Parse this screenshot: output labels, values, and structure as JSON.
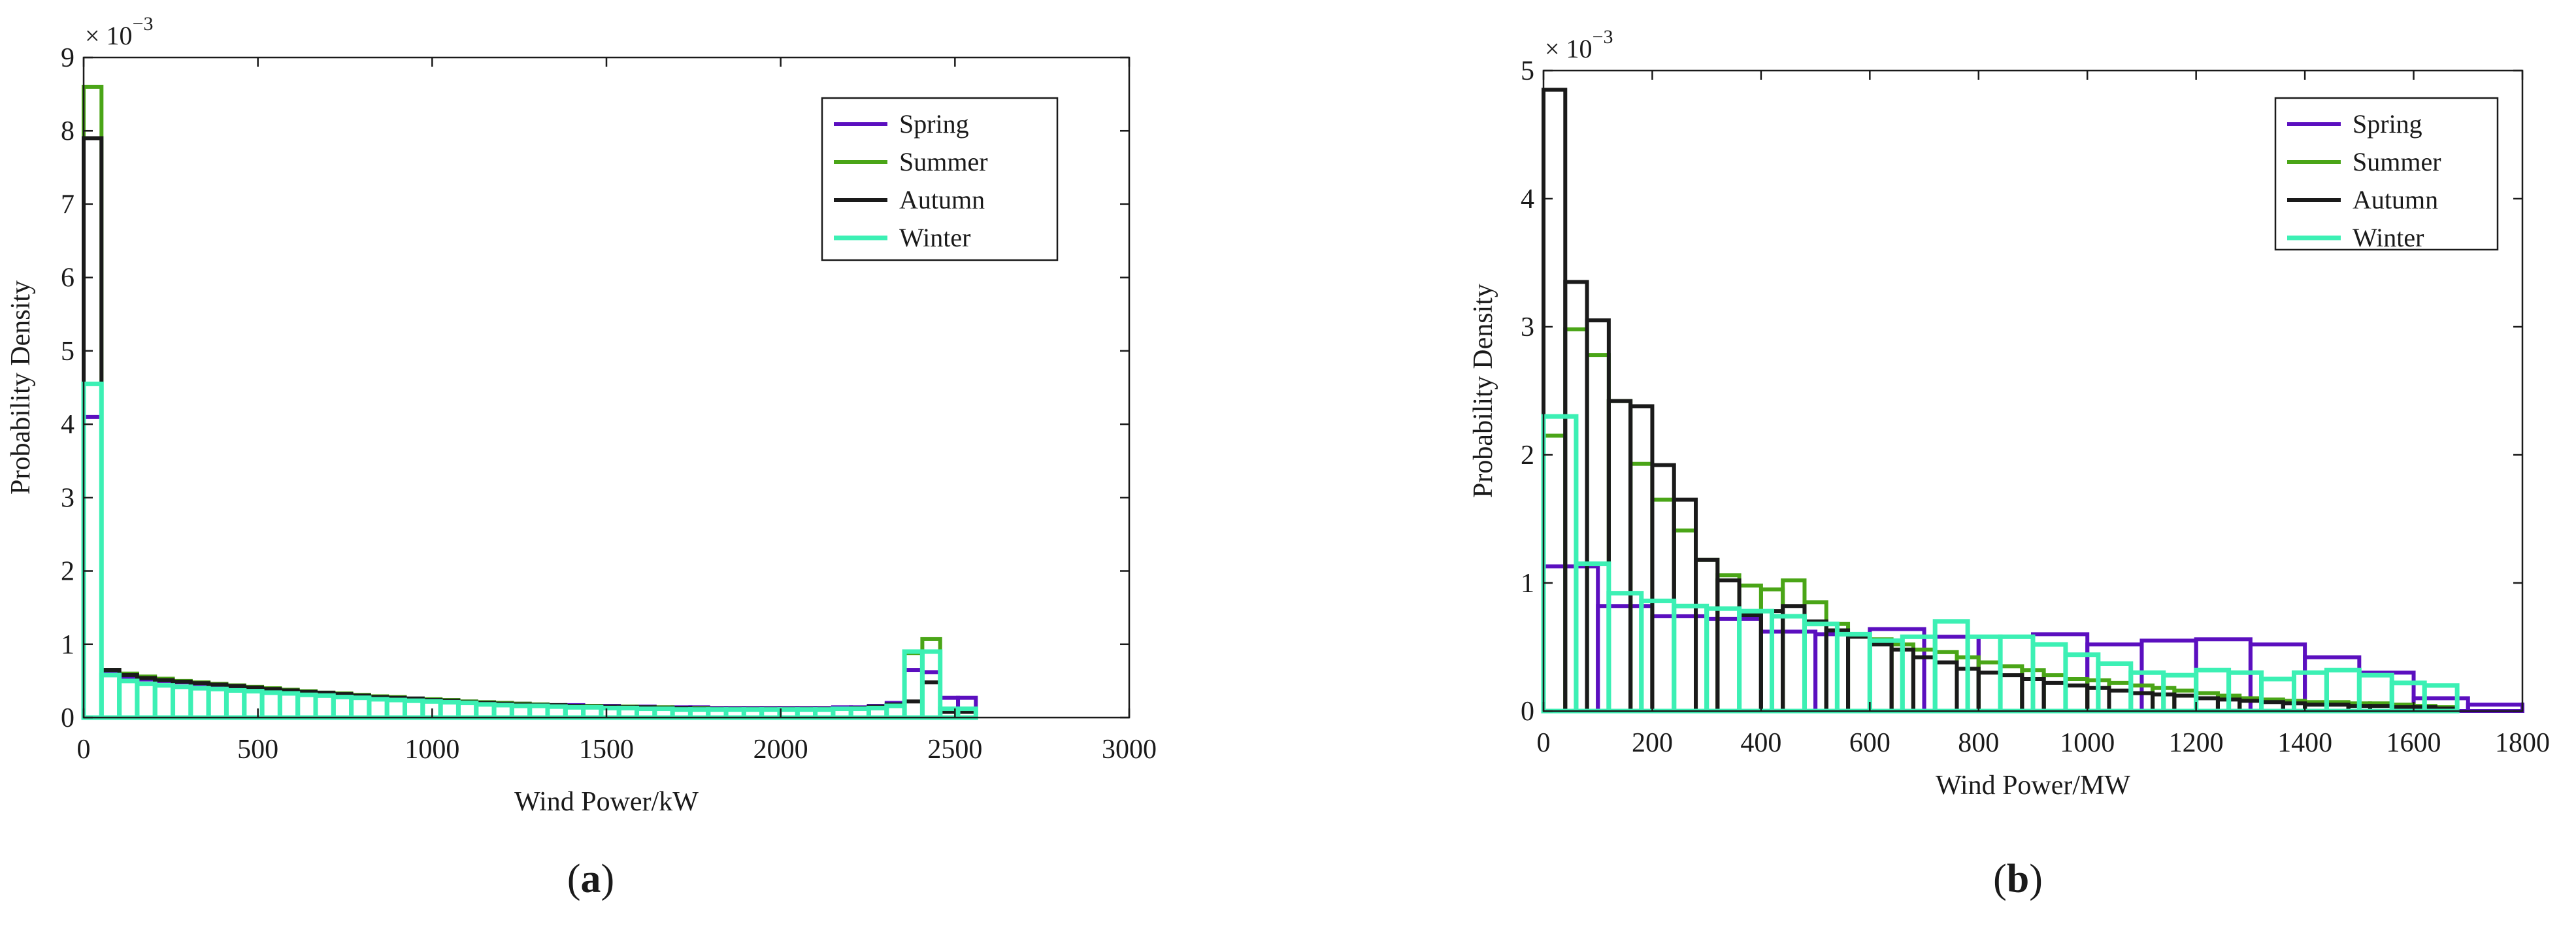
{
  "panels": [
    {
      "id": "a",
      "label_open": "(",
      "label_letter": "a",
      "label_close": ")",
      "chart_data": {
        "type": "histogram",
        "title": "",
        "xlabel": "Wind Power/kW",
        "ylabel": "Probability Density",
        "y_exponent_prefix": "× 10",
        "y_exponent_power": "−3",
        "xlim": [
          0,
          3000
        ],
        "ylim": [
          0,
          9
        ],
        "x_ticks": [
          "0",
          "500",
          "1000",
          "1500",
          "2000",
          "2500",
          "3000"
        ],
        "y_ticks": [
          "0",
          "1",
          "2",
          "3",
          "4",
          "5",
          "6",
          "7",
          "8",
          "9"
        ],
        "legend_position": "top-right",
        "bin_edges": [
          0,
          51.2,
          102.4,
          153.6,
          204.8,
          256,
          307.2,
          358.4,
          409.6,
          460.8,
          512,
          563.2,
          614.4,
          665.6,
          716.8,
          768,
          819.2,
          870.4,
          921.6,
          972.8,
          1024,
          1075.2,
          1126.4,
          1177.6,
          1228.8,
          1280,
          1331.2,
          1382.4,
          1433.6,
          1484.8,
          1536,
          1587.2,
          1638.4,
          1689.6,
          1740.8,
          1792,
          1843.2,
          1894.4,
          1945.6,
          1996.8,
          2048,
          2099.2,
          2150.4,
          2201.6,
          2252.8,
          2304,
          2355.2,
          2406.4,
          2457.6,
          2508.8,
          2560
        ],
        "series": [
          {
            "name": "Spring",
            "color": "#5b0fbf",
            "line_width": 6,
            "values": [
              4.1,
              0.62,
              0.55,
              0.52,
              0.5,
              0.48,
              0.46,
              0.44,
              0.42,
              0.4,
              0.38,
              0.36,
              0.34,
              0.33,
              0.32,
              0.3,
              0.28,
              0.27,
              0.26,
              0.25,
              0.24,
              0.22,
              0.21,
              0.2,
              0.19,
              0.18,
              0.17,
              0.17,
              0.16,
              0.16,
              0.15,
              0.15,
              0.14,
              0.14,
              0.14,
              0.13,
              0.13,
              0.13,
              0.13,
              0.13,
              0.13,
              0.13,
              0.14,
              0.14,
              0.16,
              0.2,
              0.65,
              0.62,
              0.27,
              0.27
            ]
          },
          {
            "name": "Summer",
            "color": "#4aa517",
            "line_width": 6,
            "values": [
              8.6,
              0.65,
              0.6,
              0.56,
              0.53,
              0.5,
              0.48,
              0.46,
              0.44,
              0.42,
              0.4,
              0.38,
              0.36,
              0.34,
              0.33,
              0.31,
              0.29,
              0.28,
              0.26,
              0.25,
              0.24,
              0.22,
              0.21,
              0.2,
              0.19,
              0.18,
              0.17,
              0.16,
              0.16,
              0.15,
              0.15,
              0.14,
              0.14,
              0.13,
              0.13,
              0.12,
              0.12,
              0.12,
              0.12,
              0.12,
              0.12,
              0.12,
              0.12,
              0.13,
              0.14,
              0.17,
              0.88,
              1.07,
              0.1,
              0.1
            ]
          },
          {
            "name": "Autumn",
            "color": "#1a1a1a",
            "line_width": 6,
            "values": [
              7.9,
              0.65,
              0.58,
              0.54,
              0.51,
              0.49,
              0.47,
              0.45,
              0.43,
              0.41,
              0.39,
              0.37,
              0.35,
              0.34,
              0.32,
              0.3,
              0.28,
              0.27,
              0.26,
              0.24,
              0.23,
              0.21,
              0.2,
              0.19,
              0.18,
              0.17,
              0.17,
              0.16,
              0.15,
              0.15,
              0.14,
              0.14,
              0.13,
              0.13,
              0.12,
              0.12,
              0.12,
              0.12,
              0.12,
              0.12,
              0.12,
              0.12,
              0.12,
              0.13,
              0.15,
              0.18,
              0.22,
              0.48,
              0.08,
              0.08
            ]
          },
          {
            "name": "Winter",
            "color": "#3cf0b4",
            "line_width": 7,
            "values": [
              4.55,
              0.58,
              0.5,
              0.46,
              0.44,
              0.42,
              0.4,
              0.39,
              0.37,
              0.36,
              0.34,
              0.33,
              0.31,
              0.3,
              0.28,
              0.27,
              0.25,
              0.24,
              0.23,
              0.22,
              0.21,
              0.2,
              0.18,
              0.17,
              0.16,
              0.16,
              0.15,
              0.14,
              0.14,
              0.13,
              0.13,
              0.12,
              0.12,
              0.11,
              0.11,
              0.11,
              0.11,
              0.11,
              0.11,
              0.11,
              0.11,
              0.11,
              0.12,
              0.12,
              0.13,
              0.16,
              0.9,
              0.9,
              0.12,
              0.12
            ]
          }
        ]
      }
    },
    {
      "id": "b",
      "label_open": "(",
      "label_letter": "b",
      "label_close": ")",
      "chart_data": {
        "type": "histogram",
        "title": "",
        "xlabel": "Wind Power/MW",
        "ylabel": "Probability Density",
        "y_exponent_prefix": "× 10",
        "y_exponent_power": "−3",
        "xlim": [
          0,
          1800
        ],
        "ylim": [
          0,
          5
        ],
        "x_ticks": [
          "0",
          "200",
          "400",
          "600",
          "800",
          "1000",
          "1200",
          "1400",
          "1600",
          "1800"
        ],
        "y_ticks": [
          "0",
          "1",
          "2",
          "3",
          "4",
          "5"
        ],
        "legend_position": "top-right",
        "series": [
          {
            "name": "Spring",
            "color": "#5b0fbf",
            "line_width": 6,
            "bin_width": 100,
            "x_start": 0,
            "values": [
              1.13,
              0.82,
              0.74,
              0.72,
              0.62,
              0.6,
              0.64,
              0.58,
              0.58,
              0.6,
              0.52,
              0.55,
              0.56,
              0.52,
              0.42,
              0.3,
              0.1,
              0.05
            ]
          },
          {
            "name": "Summer",
            "color": "#4aa517",
            "line_width": 6,
            "bin_width": 40,
            "x_start": 0,
            "values": [
              2.15,
              2.98,
              2.78,
              2.42,
              1.93,
              1.65,
              1.41,
              1.18,
              1.06,
              0.98,
              0.95,
              1.02,
              0.85,
              0.68,
              0.6,
              0.56,
              0.52,
              0.48,
              0.46,
              0.42,
              0.38,
              0.35,
              0.32,
              0.28,
              0.25,
              0.24,
              0.22,
              0.2,
              0.18,
              0.16,
              0.14,
              0.12,
              0.1,
              0.09,
              0.08,
              0.07,
              0.07,
              0.06,
              0.06,
              0.05,
              0.04,
              0.03
            ]
          },
          {
            "name": "Autumn",
            "color": "#1a1a1a",
            "line_width": 6,
            "bin_width": 40,
            "x_start": 0,
            "values": [
              4.85,
              3.35,
              3.05,
              2.42,
              2.38,
              1.92,
              1.65,
              1.18,
              1.02,
              0.75,
              0.78,
              0.82,
              0.7,
              0.63,
              0.58,
              0.52,
              0.48,
              0.42,
              0.38,
              0.33,
              0.3,
              0.28,
              0.25,
              0.22,
              0.2,
              0.18,
              0.16,
              0.14,
              0.13,
              0.12,
              0.1,
              0.09,
              0.08,
              0.07,
              0.06,
              0.05,
              0.05,
              0.04,
              0.04,
              0.03,
              0.03,
              0.02
            ]
          },
          {
            "name": "Winter",
            "color": "#3cf0b4",
            "line_width": 7,
            "bin_width": 60,
            "x_start": 0,
            "values": [
              2.3,
              1.15,
              0.92,
              0.86,
              0.82,
              0.8,
              0.78,
              0.74,
              0.68,
              0.6,
              0.55,
              0.58,
              0.7,
              0.58,
              0.58,
              0.52,
              0.44,
              0.37,
              0.3,
              0.28,
              0.32,
              0.3,
              0.25,
              0.3,
              0.32,
              0.28,
              0.22,
              0.2
            ]
          }
        ]
      }
    }
  ]
}
